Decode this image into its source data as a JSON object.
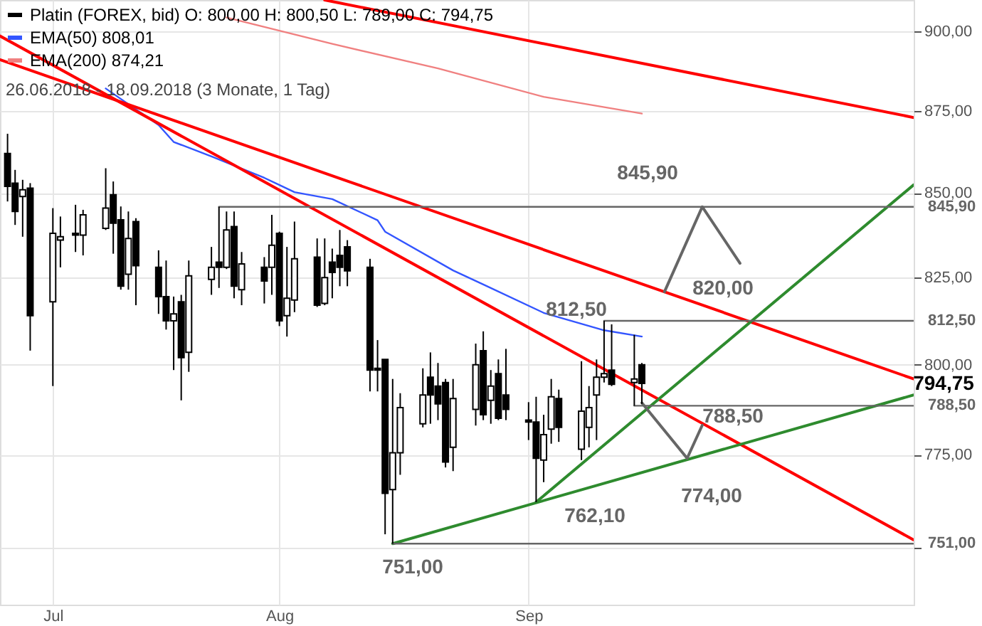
{
  "chart_data": {
    "type": "candlestick",
    "log": true,
    "grid": true,
    "legend": "top left",
    "marker": "none",
    "line_style": "solid",
    "subtitle": "26.06.2018 - 18.09.2018  (3 Monate, 1 Tag)",
    "xlim": [
      "2018-06-25",
      "2018-10-24"
    ],
    "ylim": [
      735,
      910
    ],
    "xticks": [
      {
        "value": "2018-07-02",
        "label": "Jul"
      },
      {
        "value": "2018-08-01",
        "label": "Aug"
      },
      {
        "value": "2018-09-03",
        "label": "Sep"
      }
    ],
    "yticks": [
      {
        "value": 750,
        "label": null
      },
      {
        "value": 775,
        "label": "775,00"
      },
      {
        "value": 800,
        "label": "800,00"
      },
      {
        "value": 825,
        "label": "825,00"
      },
      {
        "value": 850,
        "label": "850,00"
      },
      {
        "value": 875,
        "label": "875,00"
      },
      {
        "value": 900,
        "label": "900,00"
      }
    ],
    "annotations": [
      "845,90",
      "820,00",
      "812,50",
      "788,50",
      "774,00",
      "762,10",
      "751,00",
      "794,75"
    ],
    "series": [
      {
        "type": "line",
        "name": "EMA(50)  808,01",
        "color": "#3355ff",
        "x": [
          "2018-07-09",
          "2018-07-16",
          "2018-07-18",
          "2018-07-23",
          "2018-07-30",
          "2018-08-03",
          "2018-08-08",
          "2018-08-14",
          "2018-08-15",
          "2018-08-24",
          "2018-08-28",
          "2018-09-05",
          "2018-09-13",
          "2018-09-18"
        ],
        "values": [
          882,
          870.7,
          865.5,
          861.1,
          854.6,
          850.3,
          848.2,
          841.9,
          838.5,
          827.1,
          823,
          814.8,
          809.8,
          808.01
        ]
      },
      {
        "type": "line",
        "name": "EMA(200)  874,21",
        "color": "#f08080",
        "x": [
          "2018-07-25",
          "2018-08-08",
          "2018-08-22",
          "2018-09-05",
          "2018-09-18"
        ],
        "values": [
          904.4,
          896,
          888.3,
          879.4,
          874.21
        ]
      },
      {
        "type": "line",
        "color": "#ff0000",
        "x": [
          "2018-08-07",
          "2018-10-24"
        ],
        "values": [
          910,
          873
        ]
      },
      {
        "type": "line",
        "color": "#ff0000",
        "x": [
          "2018-06-25",
          "2018-10-24"
        ],
        "values": [
          891,
          796
        ]
      },
      {
        "type": "line",
        "color": "#ff0000",
        "x": [
          "2018-06-25",
          "2018-10-24"
        ],
        "values": [
          898.5,
          752
        ]
      },
      {
        "type": "line",
        "color": "#2e8b2e",
        "x": [
          "2018-08-16",
          "2018-10-24"
        ],
        "values": [
          751,
          791.5
        ]
      },
      {
        "type": "line",
        "color": "#2e8b2e",
        "x": [
          "2018-09-04",
          "2018-10-24"
        ],
        "values": [
          762.1,
          852.5
        ]
      },
      {
        "type": "line",
        "color": "#666666",
        "x": [
          "2018-07-24",
          "2018-10-24"
        ],
        "values": [
          845.9,
          845.9
        ],
        "value_labels": [
          null,
          "845,90"
        ]
      },
      {
        "type": "line",
        "color": "#666666",
        "x": [
          "2018-09-13",
          "2018-10-24"
        ],
        "values": [
          812.5,
          812.5
        ],
        "value_labels": [
          null,
          "812,50"
        ]
      },
      {
        "type": "line",
        "color": "#666666",
        "x": [
          "2018-09-17",
          "2018-10-24"
        ],
        "values": [
          788.5,
          788.5
        ],
        "value_labels": [
          null,
          "788,50"
        ]
      },
      {
        "type": "line",
        "color": "#666666",
        "x": [
          "2018-08-16",
          "2018-10-24"
        ],
        "values": [
          751,
          751
        ],
        "value_labels": [
          null,
          "751,00"
        ]
      },
      {
        "type": "line",
        "color": "#666666",
        "x": [
          "2018-09-21",
          "2018-09-26",
          "2018-10-01"
        ],
        "values": [
          820.9,
          845.9,
          829.2
        ]
      },
      {
        "type": "line",
        "color": "#666666",
        "x": [
          "2018-09-18",
          "2018-09-24",
          "2018-09-26"
        ],
        "values": [
          789.3,
          774,
          783.1
        ]
      },
      {
        "type": "candlestick",
        "name": "Platin (FOREX, bid)  O: 800,00  H: 800,50  L: 789,00  C: 794,75",
        "color": "#000000",
        "x": [
          "2018-06-26",
          "2018-06-27",
          "2018-06-28",
          "2018-06-29",
          "2018-07-02",
          "2018-07-03",
          "2018-07-05",
          "2018-07-06",
          "2018-07-09",
          "2018-07-10",
          "2018-07-11",
          "2018-07-12",
          "2018-07-13",
          "2018-07-16",
          "2018-07-17",
          "2018-07-18",
          "2018-07-19",
          "2018-07-20",
          "2018-07-23",
          "2018-07-24",
          "2018-07-25",
          "2018-07-26",
          "2018-07-27",
          "2018-07-30",
          "2018-07-31",
          "2018-08-01",
          "2018-08-02",
          "2018-08-03",
          "2018-08-06",
          "2018-08-07",
          "2018-08-08",
          "2018-08-09",
          "2018-08-10",
          "2018-08-13",
          "2018-08-14",
          "2018-08-15",
          "2018-08-16",
          "2018-08-17",
          "2018-08-20",
          "2018-08-21",
          "2018-08-22",
          "2018-08-23",
          "2018-08-24",
          "2018-08-27",
          "2018-08-28",
          "2018-08-29",
          "2018-08-30",
          "2018-08-31",
          "2018-09-03",
          "2018-09-04",
          "2018-09-05",
          "2018-09-06",
          "2018-09-07",
          "2018-09-10",
          "2018-09-11",
          "2018-09-12",
          "2018-09-13",
          "2018-09-14",
          "2018-09-17",
          "2018-09-18"
        ],
        "ohlc": [
          [
            862,
            868,
            847.5,
            852
          ],
          [
            853,
            857,
            840.5,
            844.5
          ],
          [
            849,
            854,
            837,
            851
          ],
          [
            851.5,
            853,
            804,
            814
          ],
          [
            818,
            845.5,
            794,
            838
          ],
          [
            836,
            843,
            828,
            837
          ],
          [
            838,
            846.5,
            832.5,
            837.5
          ],
          [
            837.5,
            845,
            831.5,
            843.5
          ],
          [
            839.5,
            857.5,
            839,
            845.5
          ],
          [
            849.5,
            853.5,
            832,
            841
          ],
          [
            842,
            846,
            821.5,
            822.5
          ],
          [
            826,
            844.5,
            821.5,
            836.5
          ],
          [
            841.5,
            842.5,
            817,
            828.5
          ],
          [
            828,
            833,
            814.5,
            819.5
          ],
          [
            819.5,
            830,
            810,
            812.5
          ],
          [
            812.5,
            819.5,
            798.5,
            814.5
          ],
          [
            818,
            820,
            790,
            802
          ],
          [
            803.5,
            830,
            798,
            825.5
          ],
          [
            824.5,
            834,
            820,
            828
          ],
          [
            829.5,
            845.9,
            822,
            828
          ],
          [
            828,
            844.5,
            827.5,
            839
          ],
          [
            840,
            844.5,
            819,
            822.5
          ],
          [
            821.5,
            832.5,
            817,
            829
          ],
          [
            828,
            831,
            817.5,
            824
          ],
          [
            828,
            843.5,
            820,
            834.5
          ],
          [
            838,
            838.5,
            811,
            812.5
          ],
          [
            814,
            834,
            808,
            819
          ],
          [
            818.5,
            841.5,
            815,
            830.5
          ],
          [
            831,
            836.5,
            816.5,
            817
          ],
          [
            817.5,
            836.5,
            817,
            825
          ],
          [
            829.5,
            833.5,
            819,
            826.5
          ],
          [
            831.5,
            839,
            822.5,
            828
          ],
          [
            834,
            836,
            822.5,
            827
          ],
          [
            828,
            830.5,
            792.5,
            798.5
          ],
          [
            799,
            807,
            792.5,
            798.5
          ],
          [
            801.5,
            801.5,
            753.5,
            764.5
          ],
          [
            765.5,
            796,
            751,
            775.5
          ],
          [
            775.5,
            792,
            769.5,
            788
          ],
          [
            783.5,
            799,
            782.5,
            791.5
          ],
          [
            796.5,
            803.5,
            783.5,
            791.5
          ],
          [
            794,
            800.5,
            784.5,
            789
          ],
          [
            795,
            796,
            771.5,
            773
          ],
          [
            777,
            796,
            770.5,
            790.5
          ],
          [
            787.5,
            806,
            783,
            800
          ],
          [
            804,
            809.5,
            784.5,
            786
          ],
          [
            790,
            798.5,
            783.5,
            794
          ],
          [
            797.5,
            801.5,
            784.5,
            785
          ],
          [
            791.5,
            804.5,
            784.5,
            787.5
          ],
          [
            784.5,
            789.5,
            779,
            784
          ],
          [
            784,
            791,
            762.1,
            774
          ],
          [
            773.5,
            786,
            767.5,
            780.5
          ],
          [
            782,
            796,
            778,
            791
          ],
          [
            790.5,
            793,
            778.5,
            782.5
          ],
          [
            776.5,
            801,
            773.5,
            787
          ],
          [
            782.5,
            794,
            777,
            788
          ],
          [
            791.5,
            801.5,
            779,
            796.5
          ],
          [
            796.5,
            812.5,
            795,
            797.5
          ],
          [
            798.5,
            811.5,
            794,
            794.5
          ],
          [
            795,
            808.5,
            788.5,
            796
          ],
          [
            800,
            800.5,
            789,
            794.75
          ]
        ]
      }
    ]
  }
}
